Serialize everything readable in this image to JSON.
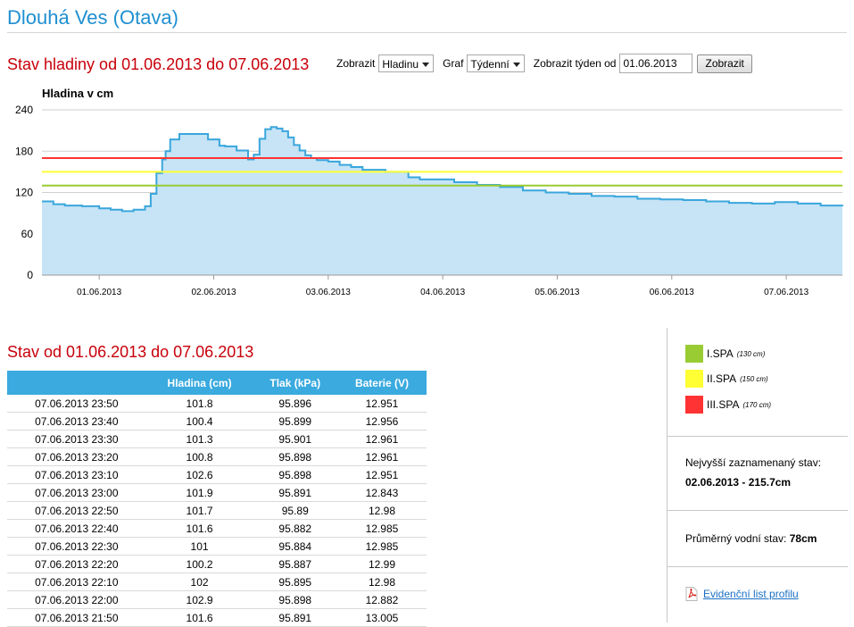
{
  "header": {
    "title": "Dlouhá Ves (Otava)"
  },
  "chart_section": {
    "title": "Stav hladiny od 01.06.2013 do 07.06.2013"
  },
  "controls": {
    "show_label": "Zobrazit",
    "show_value": "Hladinu",
    "graph_label": "Graf",
    "graph_value": "Týdenní",
    "week_label": "Zobrazit týden od",
    "week_value": "01.06.2013",
    "submit_label": "Zobrazit"
  },
  "chart_data": {
    "type": "area",
    "ylabel": "Hladina v cm",
    "ylim": [
      0,
      240
    ],
    "yticks": [
      "0",
      "60",
      "120",
      "180",
      "240"
    ],
    "x_tick_labels": [
      "01.06.2013",
      "02.06.2013",
      "03.06.2013",
      "04.06.2013",
      "05.06.2013",
      "06.06.2013",
      "07.06.2013"
    ],
    "x_range_days": [
      0.0,
      6.99
    ],
    "grid": true,
    "fill_color": "#c6e4f6",
    "line_color": "#3aa6dc",
    "thresholds": [
      {
        "label": "I.SPA",
        "value": 130,
        "color": "#99cc33"
      },
      {
        "label": "II.SPA",
        "value": 150,
        "color": "#ffff33"
      },
      {
        "label": "III.SPA",
        "value": 170,
        "color": "#ff3333"
      }
    ],
    "series": [
      {
        "x": [
          0.0,
          0.1,
          0.2,
          0.35,
          0.5,
          0.6,
          0.7,
          0.8,
          0.9,
          0.95,
          1.0,
          1.05,
          1.08,
          1.12,
          1.2,
          1.3,
          1.45,
          1.55,
          1.6,
          1.7,
          1.8,
          1.85,
          1.9,
          1.95,
          2.0,
          2.05,
          2.1,
          2.15,
          2.2,
          2.25,
          2.3,
          2.35,
          2.4,
          2.5,
          2.6,
          2.7,
          2.8,
          3.0,
          3.2,
          3.3,
          3.5,
          3.6,
          3.8,
          4.0,
          4.2,
          4.4,
          4.6,
          4.8,
          5.0,
          5.2,
          5.4,
          5.6,
          5.8,
          6.0,
          6.2,
          6.4,
          6.6,
          6.8,
          6.99
        ],
        "y": [
          107,
          103,
          101,
          100,
          97,
          95,
          93,
          95,
          100,
          118,
          148,
          168,
          180,
          197,
          205,
          205,
          197,
          188,
          187,
          181,
          168,
          175,
          198,
          212,
          215,
          213,
          209,
          200,
          189,
          181,
          174,
          170,
          167,
          165,
          160,
          157,
          153,
          150,
          142,
          139,
          139,
          135,
          131,
          128,
          123,
          120,
          118,
          115,
          114,
          111,
          110,
          109,
          107,
          105,
          104,
          106,
          104,
          101,
          102
        ]
      }
    ]
  },
  "table_section": {
    "title": "Stav od 01.06.2013 do 07.06.2013"
  },
  "table": {
    "headers": [
      "",
      "Hladina (cm)",
      "Tlak (kPa)",
      "Baterie (V)"
    ],
    "rows": [
      [
        "07.06.2013 23:50",
        "101.8",
        "95.896",
        "12.951"
      ],
      [
        "07.06.2013 23:40",
        "100.4",
        "95.899",
        "12.956"
      ],
      [
        "07.06.2013 23:30",
        "101.3",
        "95.901",
        "12.961"
      ],
      [
        "07.06.2013 23:20",
        "100.8",
        "95.898",
        "12.961"
      ],
      [
        "07.06.2013 23:10",
        "102.6",
        "95.898",
        "12.951"
      ],
      [
        "07.06.2013 23:00",
        "101.9",
        "95.891",
        "12.843"
      ],
      [
        "07.06.2013 22:50",
        "101.7",
        "95.89",
        "12.98"
      ],
      [
        "07.06.2013 22:40",
        "101.6",
        "95.882",
        "12.985"
      ],
      [
        "07.06.2013 22:30",
        "101",
        "95.884",
        "12.985"
      ],
      [
        "07.06.2013 22:20",
        "100.2",
        "95.887",
        "12.99"
      ],
      [
        "07.06.2013 22:10",
        "102",
        "95.895",
        "12.98"
      ],
      [
        "07.06.2013 22:00",
        "102.9",
        "95.898",
        "12.882"
      ],
      [
        "07.06.2013 21:50",
        "101.6",
        "95.891",
        "13.005"
      ]
    ]
  },
  "sidebar": {
    "legend": [
      {
        "label": "I.SPA",
        "note": "(130 cm)",
        "color": "#99cc33"
      },
      {
        "label": "II.SPA",
        "note": "(150 cm)",
        "color": "#ffff33"
      },
      {
        "label": "III.SPA",
        "note": "(170 cm)",
        "color": "#ff3333"
      }
    ],
    "max_label": "Nejvyšší zaznamenaný stav:",
    "max_value": "02.06.2013 - 215.7cm",
    "avg_label": "Průměrný vodní stav:",
    "avg_value": "78cm",
    "link_label": "Evidenční list profilu"
  }
}
